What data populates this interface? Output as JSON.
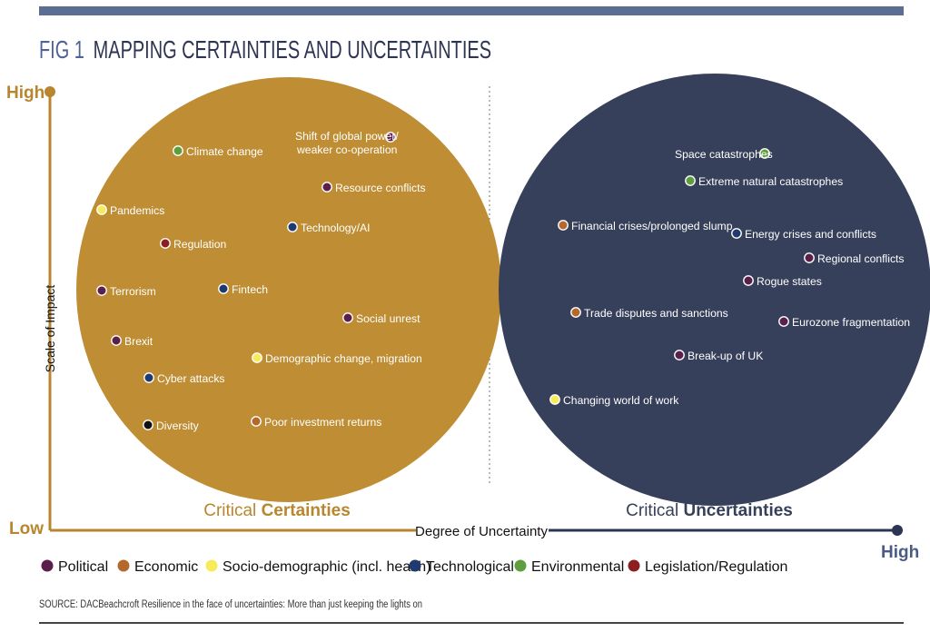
{
  "title": {
    "prefix": "FIG 1",
    "text": "MAPPING CERTAINTIES AND UNCERTAINTIES"
  },
  "axes": {
    "y_label": "Scale of Impact",
    "x_label": "Degree of Uncertainty",
    "y_high": "High",
    "y_low": "Low",
    "x_high": "High"
  },
  "groups": {
    "certainties": {
      "prefix": "Critical ",
      "bold": "Certainties"
    },
    "uncertainties": {
      "prefix": "Critical ",
      "bold": "Uncertainties"
    }
  },
  "colors": {
    "certainties_fill": "#BE8D34",
    "uncertainties_fill": "#37405A",
    "accent_gold": "#B8862E",
    "accent_blue": "#4A5C86",
    "axis_navy": "#2B3654"
  },
  "categories": {
    "political": {
      "label": "Political",
      "color": "#5A1F4A"
    },
    "economic": {
      "label": "Economic",
      "color": "#B5682C"
    },
    "sociodemo": {
      "label": "Socio-demographic (incl. health)",
      "color": "#F7EB5A"
    },
    "technological": {
      "label": "Technological",
      "color": "#1E3A6E"
    },
    "environmental": {
      "label": "Environmental",
      "color": "#5E9E3F"
    },
    "legislation": {
      "label": "Legislation/Regulation",
      "color": "#8C1F1F"
    },
    "other": {
      "color": "#111111"
    }
  },
  "legend_order": [
    "political",
    "economic",
    "sociodemo",
    "technological",
    "environmental",
    "legislation"
  ],
  "certainties": [
    {
      "label": "Shift of global power/",
      "label2": "weaker co-operation",
      "cat": "political"
    },
    {
      "label": "Climate change",
      "cat": "environmental"
    },
    {
      "label": "Resource conflicts",
      "cat": "political"
    },
    {
      "label": "Pandemics",
      "cat": "sociodemo"
    },
    {
      "label": "Technology/AI",
      "cat": "technological"
    },
    {
      "label": "Regulation",
      "cat": "legislation"
    },
    {
      "label": "Terrorism",
      "cat": "political"
    },
    {
      "label": "Fintech",
      "cat": "technological"
    },
    {
      "label": "Social unrest",
      "cat": "political"
    },
    {
      "label": "Brexit",
      "cat": "political"
    },
    {
      "label": "Demographic change, migration",
      "cat": "sociodemo"
    },
    {
      "label": "Cyber attacks",
      "cat": "technological"
    },
    {
      "label": "Diversity",
      "cat": "other"
    },
    {
      "label": "Poor investment returns",
      "cat": "economic"
    }
  ],
  "uncertainties": [
    {
      "label": "Space catastrophes",
      "cat": "environmental"
    },
    {
      "label": "Extreme natural catastrophes",
      "cat": "environmental"
    },
    {
      "label": "Financial crises/prolonged slump",
      "cat": "economic"
    },
    {
      "label": "Energy crises and conflicts",
      "cat": "technological"
    },
    {
      "label": "Regional conflicts",
      "cat": "political"
    },
    {
      "label": "Rogue states",
      "cat": "political"
    },
    {
      "label": "Trade disputes and sanctions",
      "cat": "economic"
    },
    {
      "label": "Eurozone fragmentation",
      "cat": "political"
    },
    {
      "label": "Break-up of UK",
      "cat": "political"
    },
    {
      "label": "Changing world of work",
      "cat": "sociodemo"
    }
  ],
  "source": "SOURCE: DACBeachcroft Resilience in the face of uncertainties: More than just keeping the lights on"
}
